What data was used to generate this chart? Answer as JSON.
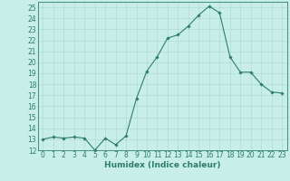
{
  "x": [
    0,
    1,
    2,
    3,
    4,
    5,
    6,
    7,
    8,
    9,
    10,
    11,
    12,
    13,
    14,
    15,
    16,
    17,
    18,
    19,
    20,
    21,
    22,
    23
  ],
  "y": [
    13,
    13.2,
    13.1,
    13.2,
    13.1,
    12.0,
    13.1,
    12.5,
    13.3,
    16.7,
    19.2,
    20.5,
    22.2,
    22.5,
    23.3,
    24.3,
    25.1,
    24.5,
    20.5,
    19.1,
    19.1,
    18.0,
    17.3,
    17.2
  ],
  "line_color": "#2e7d6e",
  "marker": "D",
  "marker_size": 1.8,
  "bg_color": "#c8eee8",
  "grid_color": "#aed8d0",
  "xlabel": "Humidex (Indice chaleur)",
  "ylabel": "",
  "xlim": [
    -0.5,
    23.5
  ],
  "ylim": [
    12,
    25.5
  ],
  "yticks": [
    12,
    13,
    14,
    15,
    16,
    17,
    18,
    19,
    20,
    21,
    22,
    23,
    24,
    25
  ],
  "xticks": [
    0,
    1,
    2,
    3,
    4,
    5,
    6,
    7,
    8,
    9,
    10,
    11,
    12,
    13,
    14,
    15,
    16,
    17,
    18,
    19,
    20,
    21,
    22,
    23
  ],
  "tick_color": "#2e7d6e",
  "label_color": "#2e7d6e",
  "axis_color": "#2e7d6e",
  "label_fontsize": 6.5,
  "tick_fontsize": 5.5
}
